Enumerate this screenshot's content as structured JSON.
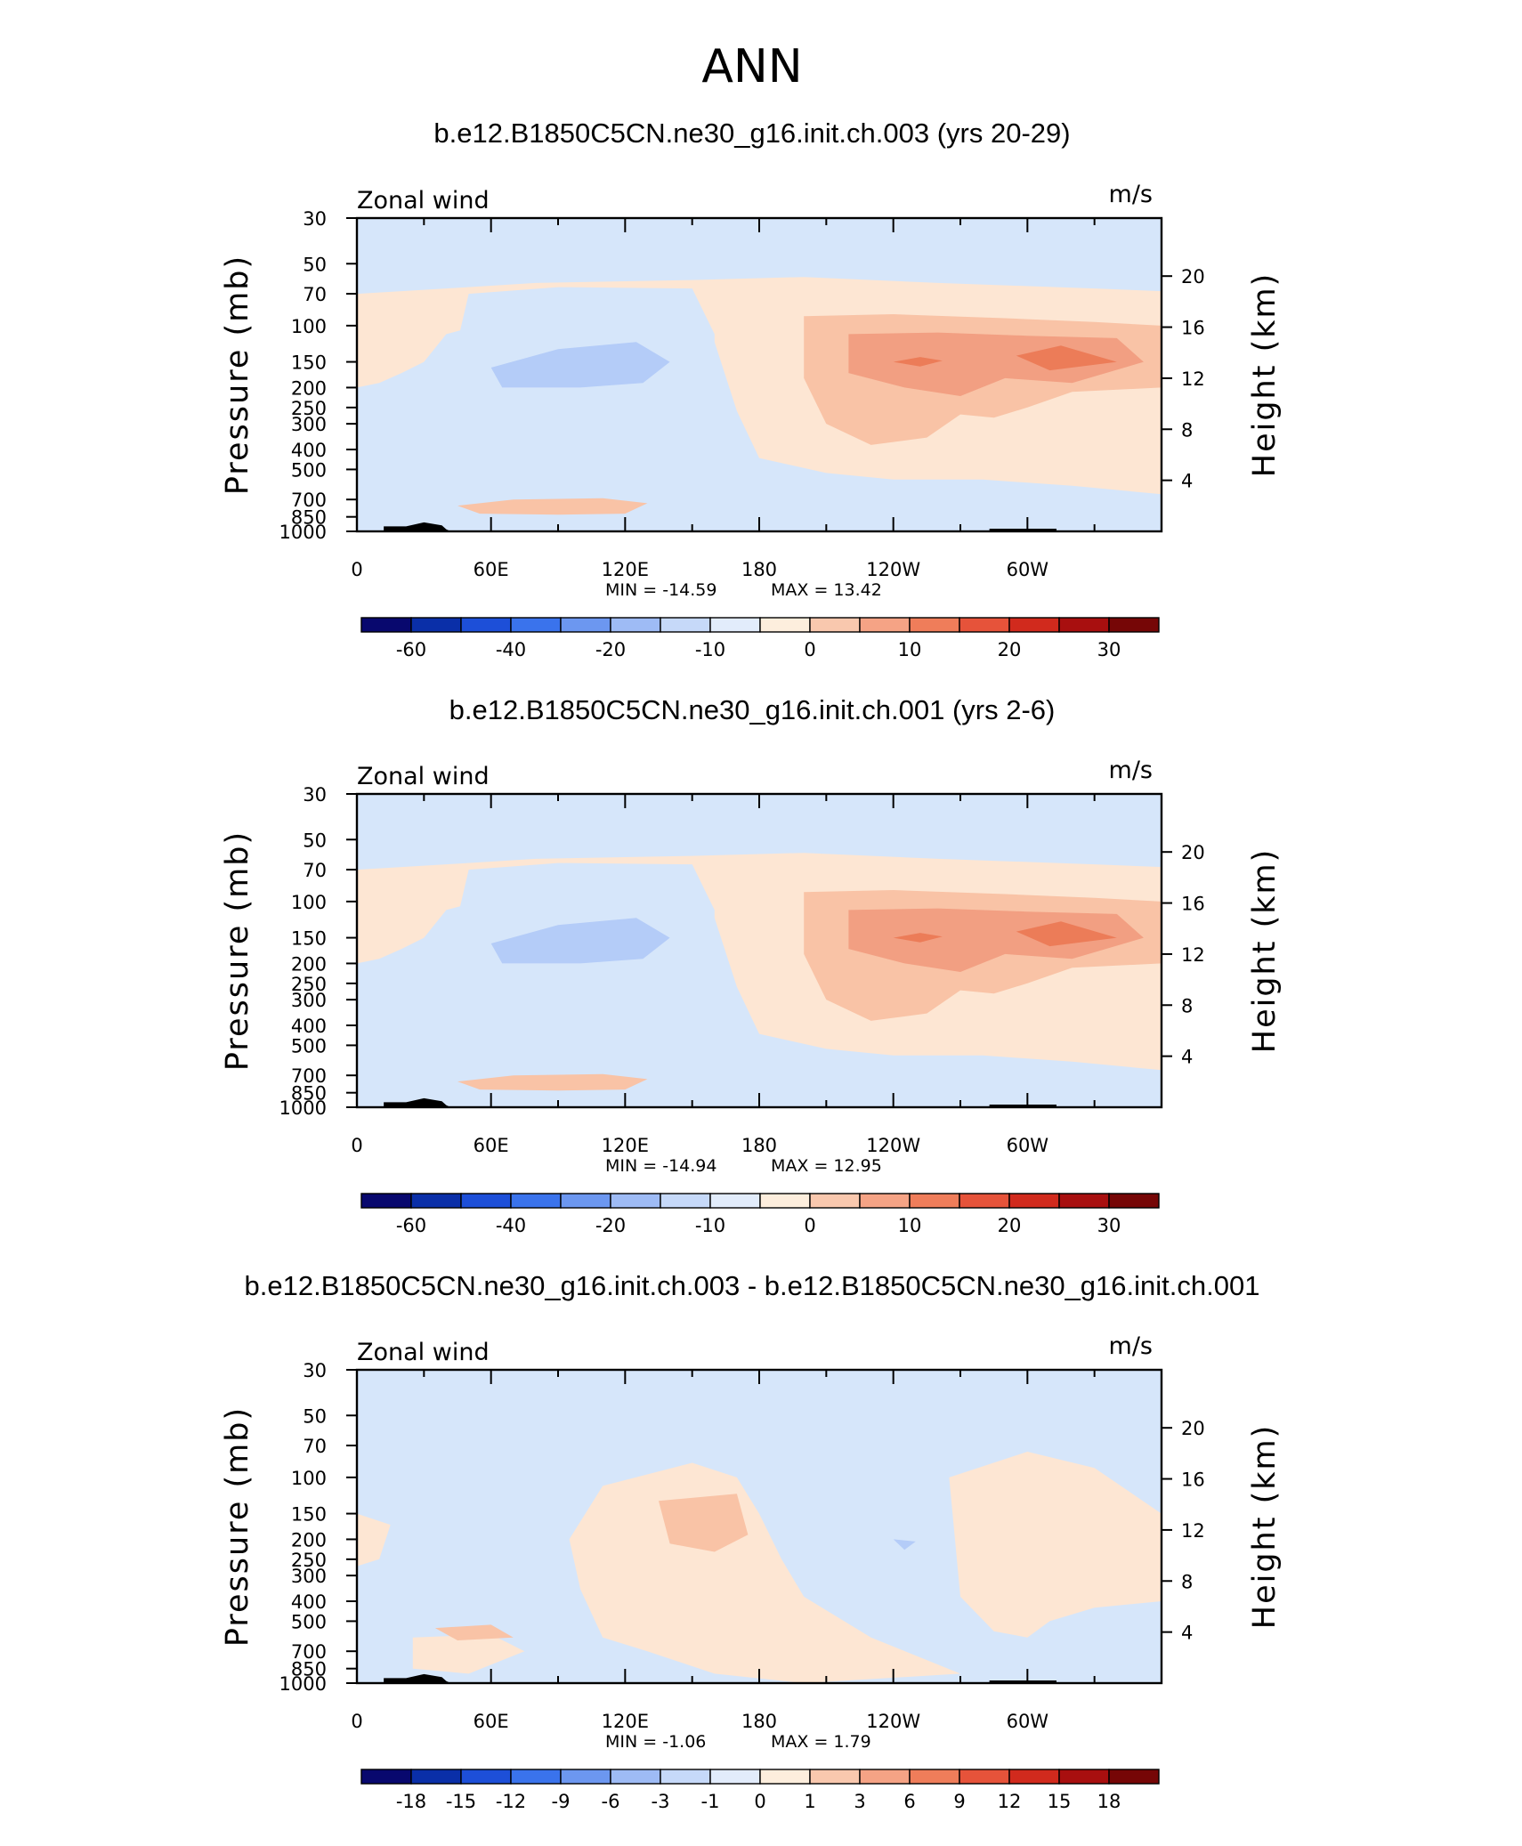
{
  "figure": {
    "title": "ANN",
    "palette": {
      "ocean_bg": "#d6e6fa",
      "pos1": "#fde6d3",
      "pos2": "#f9c3a6",
      "pos3": "#f29f82",
      "pos4": "#ec7c58",
      "neg1": "#d6e6fa",
      "neg2": "#b4ccf8",
      "topography": "#000000"
    }
  },
  "chart_data": [
    {
      "type": "contour",
      "title": "b.e12.B1850C5CN.ne30_g16.init.ch.003 (yrs 20-29)",
      "variable": "Zonal wind",
      "units": "m/s",
      "ylabel": "Pressure (mb)",
      "ylabel_right": "Height (km)",
      "x_ticks": [
        "0",
        "60E",
        "120E",
        "180",
        "120W",
        "60W"
      ],
      "y_ticks": [
        "30",
        "50",
        "70",
        "100",
        "150",
        "200",
        "250",
        "300",
        "400",
        "500",
        "700",
        "850",
        "1000"
      ],
      "height_ticks": [
        "20",
        "16",
        "12",
        "8",
        "4"
      ],
      "min_label": "MIN = -14.59",
      "max_label": "MAX = 13.42",
      "min": -14.59,
      "max": 13.42,
      "colorbar_labels": [
        "-60",
        "-40",
        "-20",
        "-10",
        "0",
        "10",
        "20",
        "30"
      ]
    },
    {
      "type": "contour",
      "title": "b.e12.B1850C5CN.ne30_g16.init.ch.001 (yrs 2-6)",
      "variable": "Zonal wind",
      "units": "m/s",
      "ylabel": "Pressure (mb)",
      "ylabel_right": "Height (km)",
      "x_ticks": [
        "0",
        "60E",
        "120E",
        "180",
        "120W",
        "60W"
      ],
      "y_ticks": [
        "30",
        "50",
        "70",
        "100",
        "150",
        "200",
        "250",
        "300",
        "400",
        "500",
        "700",
        "850",
        "1000"
      ],
      "height_ticks": [
        "20",
        "16",
        "12",
        "8",
        "4"
      ],
      "min_label": "MIN = -14.94",
      "max_label": "MAX = 12.95",
      "min": -14.94,
      "max": 12.95,
      "colorbar_labels": [
        "-60",
        "-40",
        "-20",
        "-10",
        "0",
        "10",
        "20",
        "30"
      ]
    },
    {
      "type": "contour",
      "title": "b.e12.B1850C5CN.ne30_g16.init.ch.003 - b.e12.B1850C5CN.ne30_g16.init.ch.001",
      "variable": "Zonal wind",
      "units": "m/s",
      "ylabel": "Pressure (mb)",
      "ylabel_right": "Height (km)",
      "x_ticks": [
        "0",
        "60E",
        "120E",
        "180",
        "120W",
        "60W"
      ],
      "y_ticks": [
        "30",
        "50",
        "70",
        "100",
        "150",
        "200",
        "250",
        "300",
        "400",
        "500",
        "700",
        "850",
        "1000"
      ],
      "height_ticks": [
        "20",
        "16",
        "12",
        "8",
        "4"
      ],
      "min_label": "MIN = -1.06",
      "max_label": "MAX = 1.79",
      "min": -1.06,
      "max": 1.79,
      "colorbar_labels": [
        "-18",
        "-15",
        "-12",
        "-9",
        "-6",
        "-3",
        "-1",
        "0",
        "1",
        "3",
        "6",
        "9",
        "12",
        "15",
        "18"
      ]
    }
  ],
  "colorbars": [
    [
      "#08086e",
      "#0a2fa8",
      "#1d4fd8",
      "#3a73ec",
      "#6c97f0",
      "#9ebbf5",
      "#c6d9f9",
      "#e2ecfb",
      "#fdeedd",
      "#f9c8ae",
      "#f5a385",
      "#ef7d5a",
      "#e6533a",
      "#d12a1d",
      "#a80f0f",
      "#760606"
    ],
    [
      "#08086e",
      "#0a2fa8",
      "#1d4fd8",
      "#3a73ec",
      "#6c97f0",
      "#9ebbf5",
      "#c6d9f9",
      "#e2ecfb",
      "#fdeedd",
      "#f9c8ae",
      "#f5a385",
      "#ef7d5a",
      "#e6533a",
      "#d12a1d",
      "#a80f0f",
      "#760606"
    ],
    [
      "#08086e",
      "#0a2fa8",
      "#1d4fd8",
      "#3a73ec",
      "#6c97f0",
      "#9ebbf5",
      "#c6d9f9",
      "#e2ecfb",
      "#fdeedd",
      "#f9c8ae",
      "#f5a385",
      "#ef7d5a",
      "#e6533a",
      "#d12a1d",
      "#a80f0f",
      "#760606"
    ]
  ]
}
